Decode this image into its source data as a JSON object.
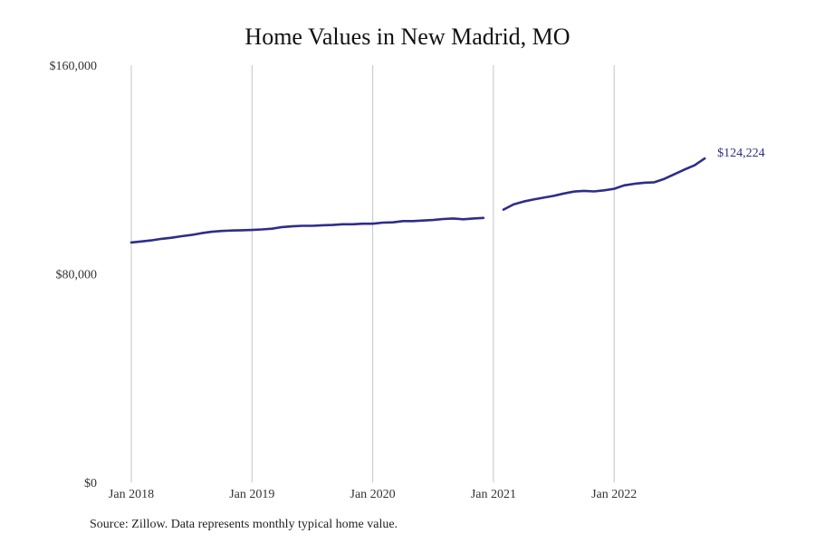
{
  "chart_data": {
    "type": "line",
    "title": "Home Values in New Madrid, MO",
    "xlabel": "",
    "ylabel": "",
    "ylim": [
      0,
      160000
    ],
    "y_ticks": [
      {
        "value": 0,
        "label": "$0"
      },
      {
        "value": 80000,
        "label": "$80,000"
      },
      {
        "value": 160000,
        "label": "$160,000"
      }
    ],
    "x_ticks": [
      {
        "date": "2018-01",
        "label": "Jan 2018"
      },
      {
        "date": "2019-01",
        "label": "Jan 2019"
      },
      {
        "date": "2020-01",
        "label": "Jan 2020"
      },
      {
        "date": "2021-01",
        "label": "Jan 2021"
      },
      {
        "date": "2022-01",
        "label": "Jan 2022"
      }
    ],
    "vertical_gridlines": true,
    "line_color": "#2e2d8a",
    "end_label": "$124,224",
    "series": [
      {
        "segments": [
          [
            [
              "2018-01",
              92000
            ],
            [
              "2018-02",
              92400
            ],
            [
              "2018-03",
              92800
            ],
            [
              "2018-04",
              93400
            ],
            [
              "2018-05",
              93800
            ],
            [
              "2018-06",
              94400
            ],
            [
              "2018-07",
              94900
            ],
            [
              "2018-08",
              95600
            ],
            [
              "2018-09",
              96100
            ],
            [
              "2018-10",
              96400
            ],
            [
              "2018-11",
              96600
            ],
            [
              "2018-12",
              96700
            ],
            [
              "2019-01",
              96800
            ],
            [
              "2019-02",
              97000
            ],
            [
              "2019-03",
              97300
            ],
            [
              "2019-04",
              97900
            ],
            [
              "2019-05",
              98200
            ],
            [
              "2019-06",
              98400
            ],
            [
              "2019-07",
              98400
            ],
            [
              "2019-08",
              98600
            ],
            [
              "2019-09",
              98700
            ],
            [
              "2019-10",
              99000
            ],
            [
              "2019-11",
              99000
            ],
            [
              "2019-12",
              99200
            ],
            [
              "2020-01",
              99200
            ],
            [
              "2020-02",
              99600
            ],
            [
              "2020-03",
              99700
            ],
            [
              "2020-04",
              100200
            ],
            [
              "2020-05",
              100200
            ],
            [
              "2020-06",
              100400
            ],
            [
              "2020-07",
              100600
            ],
            [
              "2020-08",
              101000
            ],
            [
              "2020-09",
              101200
            ],
            [
              "2020-10",
              100900
            ],
            [
              "2020-11",
              101200
            ],
            [
              "2020-12",
              101400
            ]
          ],
          [
            [
              "2021-02",
              104600
            ],
            [
              "2021-03",
              106600
            ],
            [
              "2021-04",
              107700
            ],
            [
              "2021-05",
              108500
            ],
            [
              "2021-06",
              109200
            ],
            [
              "2021-07",
              109900
            ],
            [
              "2021-08",
              110800
            ],
            [
              "2021-09",
              111500
            ],
            [
              "2021-10",
              111800
            ],
            [
              "2021-11",
              111600
            ],
            [
              "2021-12",
              112000
            ],
            [
              "2022-01",
              112600
            ],
            [
              "2022-02",
              113900
            ],
            [
              "2022-03",
              114500
            ],
            [
              "2022-04",
              114900
            ],
            [
              "2022-05",
              115100
            ],
            [
              "2022-06",
              116400
            ],
            [
              "2022-07",
              118200
            ],
            [
              "2022-08",
              120000
            ],
            [
              "2022-09",
              121600
            ],
            [
              "2022-10",
              124224
            ]
          ]
        ]
      }
    ]
  },
  "footer": {
    "source": "Source: Zillow. Data represents monthly typical home value."
  }
}
